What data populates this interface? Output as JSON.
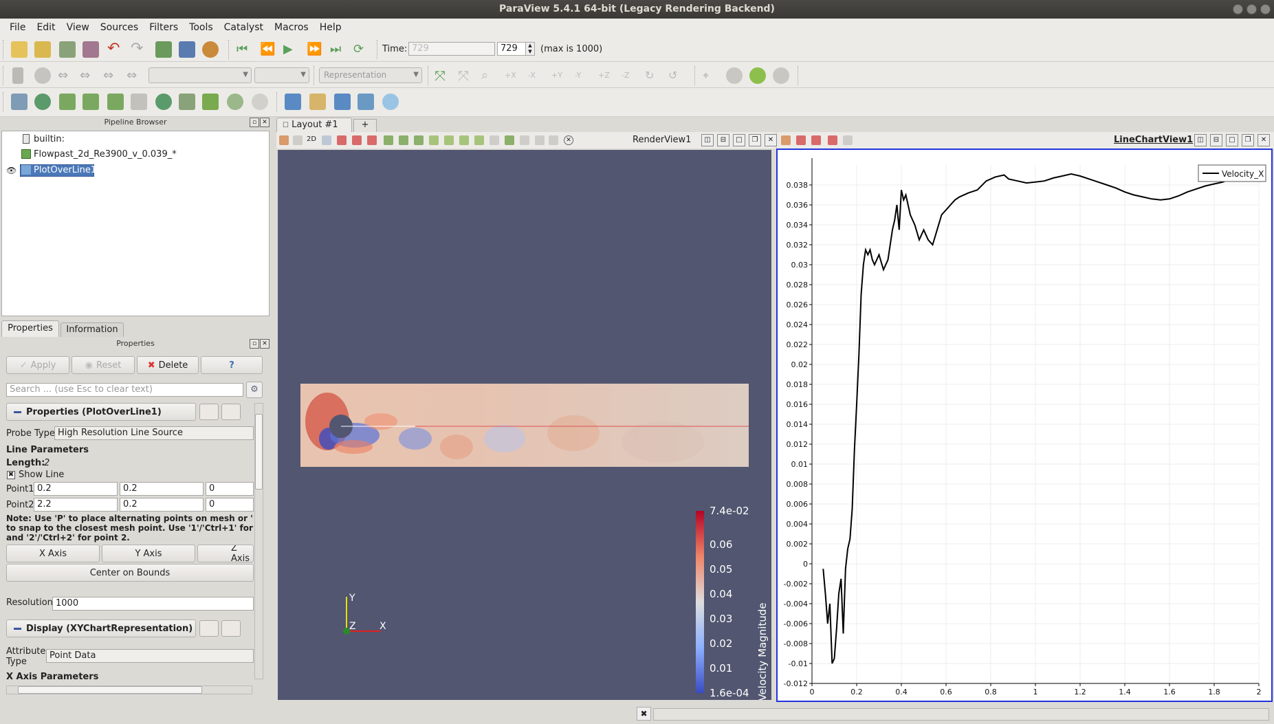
{
  "window": {
    "title": "ParaView 5.4.1 64-bit (Legacy Rendering Backend)"
  },
  "menu": [
    "File",
    "Edit",
    "View",
    "Sources",
    "Filters",
    "Tools",
    "Catalyst",
    "Macros",
    "Help"
  ],
  "time_toolbar": {
    "time_label": "Time:",
    "time_value": "729",
    "time_field": "729",
    "max_label": "(max is 1000)"
  },
  "toolbar2": {
    "representation_placeholder": "Representation"
  },
  "pipeline": {
    "title": "Pipeline Browser",
    "items": [
      "builtin:",
      "Flowpast_2d_Re3900_v_0.039_*",
      "PlotOverLine1"
    ]
  },
  "tabs": {
    "properties": "Properties",
    "information": "Information"
  },
  "properties_panel": {
    "title": "Properties",
    "apply": "Apply",
    "reset": "Reset",
    "delete": "Delete",
    "help": "?",
    "search_placeholder": "Search ... (use Esc to clear text)",
    "section_title": "Properties (PlotOverLine1)",
    "probe_type_label": "Probe Type",
    "probe_type_value": "High Resolution Line Source",
    "line_params": "Line Parameters",
    "length_label": "Length:",
    "length_value": "2",
    "show_line": "Show Line",
    "point1_label": "Point1",
    "point1": [
      "0.2",
      "0.2",
      "0"
    ],
    "point2_label": "Point2",
    "point2": [
      "2.2",
      "0.2",
      "0"
    ],
    "note_lines": [
      "Note: Use 'P' to place alternating points on mesh or '",
      "to snap to the closest mesh point. Use '1'/'Ctrl+1' for",
      "and '2'/'Ctrl+2' for point 2."
    ],
    "x_axis": "X Axis",
    "y_axis": "Y Axis",
    "z_axis": "Z Axis",
    "center_on_bounds": "Center on Bounds",
    "resolution_label": "Resolution",
    "resolution_value": "1000",
    "display_title": "Display (XYChartRepresentation)",
    "attribute_label_1": "Attribute",
    "attribute_label_2": "Type",
    "attribute_value": "Point Data",
    "x_axis_params": "X Axis Parameters"
  },
  "layout_tab": {
    "label": "Layout #1",
    "add": "+"
  },
  "render_view": {
    "title": "RenderView1",
    "mode_2d": "2D",
    "colorbar_title": "Velocity Magnitude",
    "colorbar_labels": [
      "7.4e-02",
      "0.06",
      "0.05",
      "0.04",
      "0.03",
      "0.02",
      "0.01",
      "1.6e-04"
    ],
    "axes": {
      "y": "Y",
      "z": "Z",
      "x": "X"
    }
  },
  "chart_view": {
    "title": "LineChartView1"
  },
  "chart_data": {
    "type": "line",
    "title": "",
    "xlabel": "",
    "ylabel": "",
    "xlim": [
      0,
      2
    ],
    "ylim": [
      -0.012,
      0.04
    ],
    "x_ticks": [
      "0",
      "0.2",
      "0.4",
      "0.6",
      "0.8",
      "1",
      "1.2",
      "1.4",
      "1.6",
      "1.8",
      "2"
    ],
    "y_ticks": [
      "-0.012",
      "-0.01",
      "-0.008",
      "-0.006",
      "-0.004",
      "-0.002",
      "0",
      "0.002",
      "0.004",
      "0.006",
      "0.008",
      "0.01",
      "0.012",
      "0.014",
      "0.016",
      "0.018",
      "0.02",
      "0.022",
      "0.024",
      "0.026",
      "0.028",
      "0.03",
      "0.032",
      "0.034",
      "0.036",
      "0.038"
    ],
    "legend": "top-right",
    "grid": true,
    "series": [
      {
        "name": "Velocity_X",
        "color": "#000000",
        "x": [
          0.05,
          0.06,
          0.07,
          0.08,
          0.09,
          0.1,
          0.11,
          0.12,
          0.13,
          0.14,
          0.15,
          0.16,
          0.17,
          0.18,
          0.19,
          0.2,
          0.21,
          0.22,
          0.23,
          0.24,
          0.25,
          0.26,
          0.27,
          0.28,
          0.3,
          0.32,
          0.34,
          0.36,
          0.37,
          0.38,
          0.39,
          0.4,
          0.41,
          0.42,
          0.44,
          0.46,
          0.48,
          0.5,
          0.52,
          0.54,
          0.56,
          0.58,
          0.6,
          0.62,
          0.64,
          0.66,
          0.7,
          0.74,
          0.78,
          0.82,
          0.86,
          0.88,
          0.92,
          0.96,
          1.0,
          1.04,
          1.08,
          1.12,
          1.16,
          1.2,
          1.24,
          1.28,
          1.32,
          1.36,
          1.4,
          1.44,
          1.48,
          1.52,
          1.56,
          1.6,
          1.64,
          1.68,
          1.72,
          1.76,
          1.8,
          1.84,
          1.86
        ],
        "y": [
          -0.0005,
          -0.003,
          -0.006,
          -0.004,
          -0.01,
          -0.0095,
          -0.0065,
          -0.003,
          -0.0015,
          -0.007,
          -0.0005,
          0.0015,
          0.0025,
          0.0055,
          0.0115,
          0.016,
          0.021,
          0.027,
          0.03,
          0.0315,
          0.031,
          0.0315,
          0.0305,
          0.03,
          0.031,
          0.0295,
          0.0305,
          0.0335,
          0.0345,
          0.036,
          0.0335,
          0.0375,
          0.0365,
          0.037,
          0.035,
          0.034,
          0.0325,
          0.0335,
          0.0325,
          0.032,
          0.0335,
          0.035,
          0.0355,
          0.036,
          0.0365,
          0.0368,
          0.0372,
          0.0375,
          0.0384,
          0.0388,
          0.039,
          0.0386,
          0.0384,
          0.0382,
          0.0383,
          0.0384,
          0.0387,
          0.0389,
          0.0391,
          0.0389,
          0.0386,
          0.0383,
          0.038,
          0.0377,
          0.0373,
          0.037,
          0.0368,
          0.0366,
          0.0365,
          0.0366,
          0.0369,
          0.0373,
          0.0376,
          0.0379,
          0.0381,
          0.0383,
          0.0385
        ]
      }
    ]
  }
}
